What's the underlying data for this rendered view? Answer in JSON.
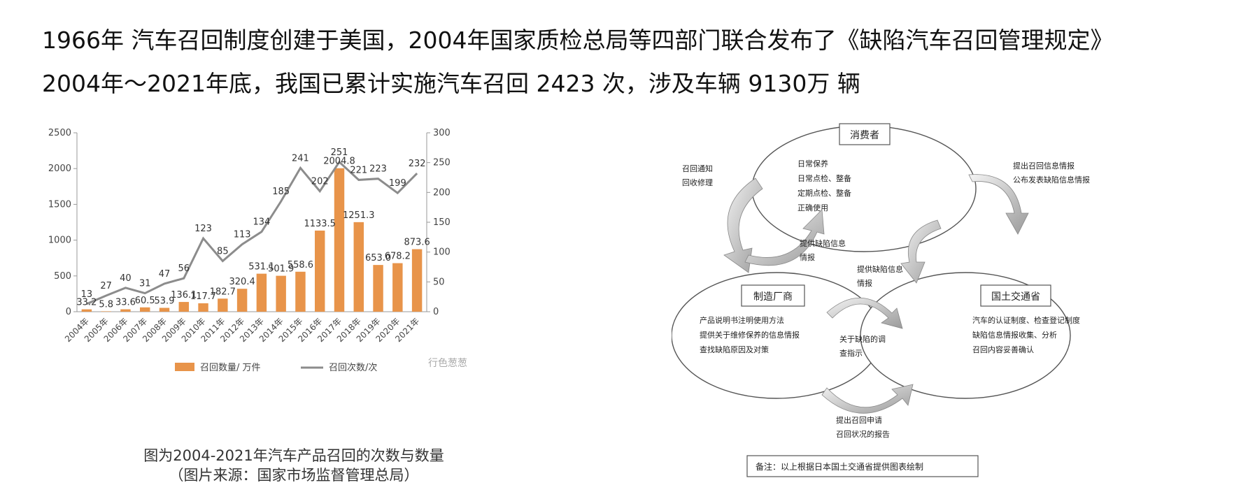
{
  "headline": {
    "line1": "1966年 汽车召回制度创建于美国，2004年国家质检总局等四部门联合发布了《缺陷汽车召回管理规定》",
    "line2": "2004年～2021年底，我国已累计实施汽车召回 2423 次，涉及车辆 9130万 辆"
  },
  "chart_data": {
    "type": "bar",
    "categories": [
      "2004年",
      "2005年",
      "2006年",
      "2007年",
      "2008年",
      "2009年",
      "2010年",
      "2011年",
      "2012年",
      "2013年",
      "2014年",
      "2015年",
      "2016年",
      "2017年",
      "2018年",
      "2019年",
      "2020年",
      "2021年"
    ],
    "series": [
      {
        "name": "召回数量/ 万件",
        "type": "bar",
        "axis": "left",
        "values": [
          33.2,
          5.8,
          33.6,
          60.5,
          53.9,
          136.1,
          117.7,
          182.7,
          320.4,
          531.1,
          501.9,
          558.6,
          1133.5,
          2004.8,
          1251.3,
          653.0,
          678.2,
          873.6
        ],
        "labels": [
          "33.2",
          "5.8",
          "33.6",
          "60.5",
          "53.9",
          "136.1",
          "117.7",
          "182.7",
          "320.4",
          "531.1",
          "501.9",
          "558.6",
          "1133.5",
          "2004.8",
          "1251.3",
          "653.0",
          "678.2",
          "873.6"
        ],
        "color": "#E8944A"
      },
      {
        "name": "召回次数/次",
        "type": "line",
        "axis": "right",
        "values": [
          13,
          27,
          40,
          31,
          47,
          56,
          123,
          85,
          113,
          134,
          185,
          241,
          202,
          251,
          221,
          223,
          199,
          232
        ],
        "labels": [
          "13",
          "27",
          "40",
          "31",
          "47",
          "56",
          "123",
          "85",
          "113",
          "134",
          "185",
          "241",
          "202",
          "251",
          "221",
          "223",
          "199",
          "232"
        ],
        "color": "#8C8C8C"
      }
    ],
    "y_left": {
      "ylim": [
        0,
        2500
      ],
      "ticks": [
        "0",
        "500",
        "1000",
        "1500",
        "2000",
        "2500"
      ]
    },
    "y_right": {
      "ylim": [
        0,
        300
      ],
      "ticks": [
        "0",
        "50",
        "100",
        "150",
        "200",
        "250",
        "300"
      ]
    },
    "legend_position": "bottom",
    "grid": false,
    "watermark": "行色葱葱"
  },
  "caption": {
    "line1": "图为2004-2021年汽车产品召回的次数与数量",
    "line2": "（图片来源：国家市场监督管理总局）"
  },
  "diagram": {
    "consumer": {
      "title": "消费者",
      "items": [
        "日常保养",
        "日常点检、整备",
        "定期点检、整备",
        "正确使用"
      ]
    },
    "manufacturer": {
      "title": "制造厂商",
      "items": [
        "产品说明书注明使用方法",
        "提供关于维修保养的信息情报",
        "查找缺陷原因及对策"
      ]
    },
    "ministry": {
      "title": "国土交通省",
      "items": [
        "汽车的认证制度、检查登记制度",
        "缺陷信息情报收集、分析",
        "召回内容妥善确认"
      ]
    },
    "arrow_labels": {
      "recall_notice": [
        "召回通知",
        "回收修理"
      ],
      "provide_info_left": [
        "提供缺陷信息",
        "情报"
      ],
      "provide_info_right": [
        "提供缺陷信息",
        "情报"
      ],
      "publish": [
        "提出召回信息情报",
        "公布发表缺陷信息情报"
      ],
      "investigate": [
        "关于缺陷的调",
        "查指示"
      ],
      "apply": [
        "提出召回申请",
        "召回状况的报告"
      ]
    },
    "note": "备注：以上根据日本国土交通省提供图表绘制"
  }
}
